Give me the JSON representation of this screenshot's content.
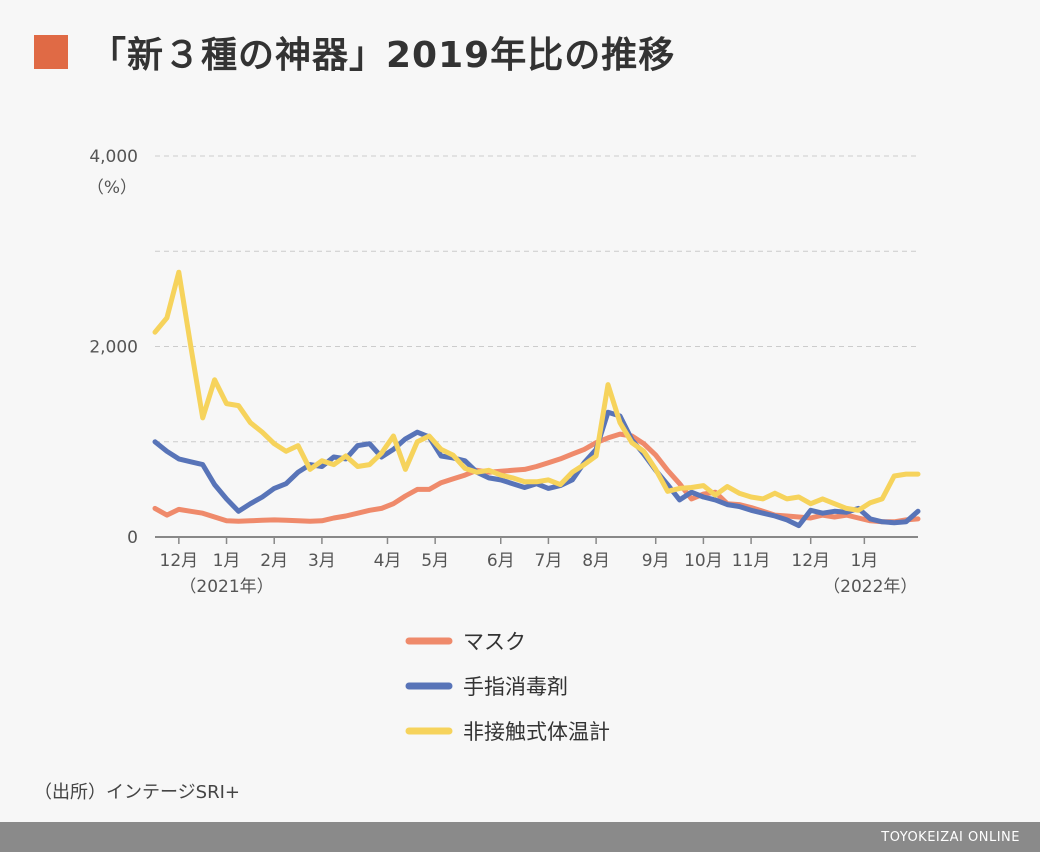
{
  "title": "「新３種の神器」2019年比の推移",
  "source": "（出所）インテージSRI+",
  "footer": "TOYOKEIZAI ONLINE",
  "chart_data": {
    "type": "line",
    "ylim": [
      0,
      4000
    ],
    "yticks": [
      0,
      2000,
      4000
    ],
    "ytick_labels": [
      "0",
      "2,000",
      "4,000"
    ],
    "yunit": "（%）",
    "grid": true,
    "xlim": [
      0,
      64
    ],
    "month_ticks": [
      {
        "x": 2,
        "label": "12月"
      },
      {
        "x": 6,
        "label": "1月"
      },
      {
        "x": 10,
        "label": "2月"
      },
      {
        "x": 14,
        "label": "3月"
      },
      {
        "x": 19.5,
        "label": "4月"
      },
      {
        "x": 23.5,
        "label": "5月"
      },
      {
        "x": 29,
        "label": "6月"
      },
      {
        "x": 33,
        "label": "7月"
      },
      {
        "x": 37,
        "label": "8月"
      },
      {
        "x": 42,
        "label": "9月"
      },
      {
        "x": 46,
        "label": "10月"
      },
      {
        "x": 50,
        "label": "11月"
      },
      {
        "x": 55,
        "label": "12月"
      },
      {
        "x": 59.5,
        "label": "1月"
      }
    ],
    "year_labels": [
      {
        "x": 6,
        "label": "（2021年）"
      },
      {
        "x": 60,
        "label": "（2022年）"
      }
    ],
    "series": [
      {
        "name": "マスク",
        "color": "#ef8a6b",
        "values": [
          300,
          230,
          290,
          270,
          250,
          210,
          170,
          165,
          170,
          175,
          180,
          175,
          170,
          165,
          170,
          200,
          220,
          250,
          280,
          300,
          350,
          430,
          500,
          500,
          570,
          610,
          650,
          700,
          680,
          690,
          700,
          710,
          740,
          780,
          820,
          870,
          920,
          990,
          1040,
          1080,
          1060,
          980,
          860,
          700,
          560,
          400,
          450,
          470,
          350,
          340,
          310,
          270,
          230,
          220,
          210,
          200,
          230,
          210,
          230,
          200,
          170,
          160,
          160,
          180,
          190
        ]
      },
      {
        "name": "手指消毒剤",
        "color": "#5874b8",
        "values": [
          1000,
          900,
          820,
          790,
          760,
          550,
          400,
          270,
          350,
          420,
          510,
          560,
          680,
          760,
          740,
          840,
          820,
          960,
          980,
          840,
          920,
          1030,
          1100,
          1050,
          850,
          830,
          800,
          680,
          620,
          600,
          560,
          520,
          560,
          510,
          540,
          600,
          780,
          920,
          1310,
          1270,
          1020,
          870,
          700,
          550,
          390,
          470,
          420,
          390,
          340,
          320,
          280,
          250,
          220,
          180,
          120,
          280,
          250,
          270,
          260,
          300,
          190,
          160,
          150,
          160,
          270
        ]
      },
      {
        "name": "非接触式体温計",
        "color": "#f6d35c",
        "values": [
          2150,
          2300,
          2780,
          2000,
          1250,
          1650,
          1400,
          1380,
          1200,
          1100,
          980,
          900,
          960,
          710,
          800,
          760,
          850,
          740,
          760,
          880,
          1060,
          710,
          1000,
          1060,
          920,
          860,
          720,
          680,
          700,
          650,
          620,
          580,
          580,
          600,
          550,
          680,
          760,
          850,
          1600,
          1200,
          990,
          900,
          710,
          480,
          510,
          520,
          540,
          440,
          530,
          460,
          420,
          400,
          460,
          400,
          420,
          350,
          400,
          350,
          300,
          280,
          360,
          400,
          640,
          660,
          660
        ]
      }
    ]
  },
  "colors": {
    "title_square": "#e06a45",
    "grid": "#cccccc",
    "axis": "#888888",
    "footer_bg": "#8a8a8a"
  }
}
